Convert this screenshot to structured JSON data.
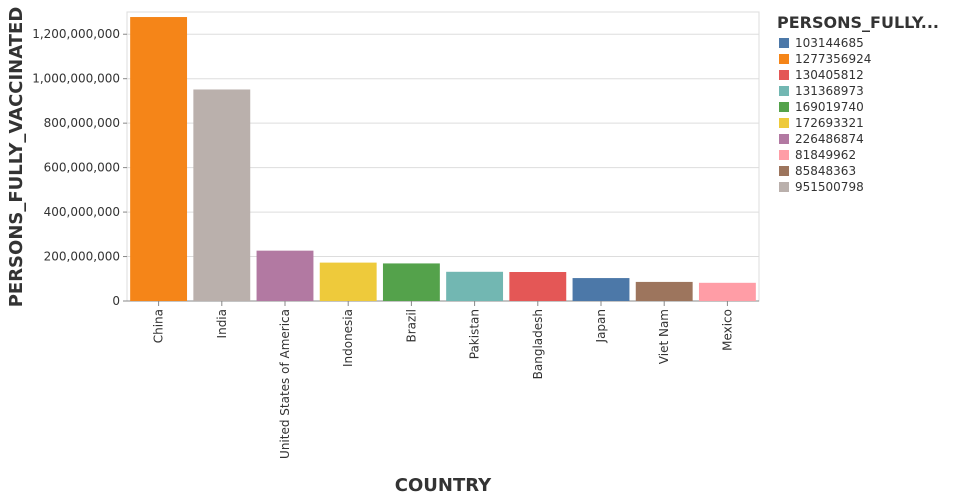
{
  "chart_data": {
    "type": "bar",
    "x_label": "COUNTRY",
    "y_label": "PERSONS_FULLY_VACCINATED",
    "categories": [
      "China",
      "India",
      "United States of America",
      "Indonesia",
      "Brazil",
      "Pakistan",
      "Bangladesh",
      "Japan",
      "Viet Nam",
      "Mexico"
    ],
    "values": [
      1277356924,
      951500798,
      226486874,
      172693321,
      169019740,
      131368973,
      130405812,
      103144685,
      85848363,
      81849962
    ],
    "colors": [
      "#f58518",
      "#bab0ac",
      "#b279a2",
      "#eeca3b",
      "#54a24b",
      "#72b7b2",
      "#e45756",
      "#4c78a8",
      "#9d755d",
      "#ff9da6"
    ],
    "ylim": [
      0,
      1300000000
    ],
    "yticks": [
      0,
      {
        "value": 200000000,
        "label": "200,000,000"
      },
      {
        "value": 400000000,
        "label": "400,000,000"
      },
      {
        "value": 600000000,
        "label": "600,000,000"
      },
      {
        "value": 800000000,
        "label": "800,000,000"
      },
      {
        "value": 1000000000,
        "label": "1,000,000,000"
      },
      {
        "value": 1200000000,
        "label": "1,200,000,000"
      }
    ],
    "grid": true,
    "legend": {
      "title": "PERSONS_FULLY...",
      "items": [
        {
          "label": "103144685",
          "color": "#4c78a8"
        },
        {
          "label": "1277356924",
          "color": "#f58518"
        },
        {
          "label": "130405812",
          "color": "#e45756"
        },
        {
          "label": "131368973",
          "color": "#72b7b2"
        },
        {
          "label": "169019740",
          "color": "#54a24b"
        },
        {
          "label": "172693321",
          "color": "#eeca3b"
        },
        {
          "label": "226486874",
          "color": "#b279a2"
        },
        {
          "label": "81849962",
          "color": "#ff9da6"
        },
        {
          "label": "85848363",
          "color": "#9d755d"
        },
        {
          "label": "951500798",
          "color": "#bab0ac"
        }
      ]
    }
  }
}
